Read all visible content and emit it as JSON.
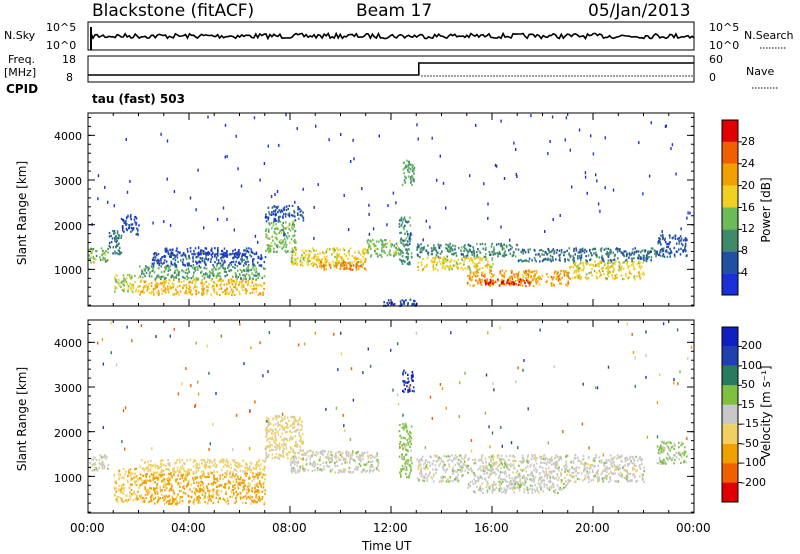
{
  "header": {
    "station": "Blackstone (fitACF)",
    "beam": "Beam 17",
    "date": "05/Jan/2013"
  },
  "top_panel": {
    "nsky_label": "N.Sky",
    "nsearch_label": "N.Search",
    "left_ticks": [
      "10^5",
      "10^0"
    ],
    "right_ticks": [
      "10^5",
      "10^0"
    ]
  },
  "freq_panel": {
    "freq_label": "Freq.",
    "freq_unit": "[MHz]",
    "cpid_label": "CPID",
    "nave_label": "Nave",
    "left_ticks": [
      "18",
      "8"
    ],
    "right_ticks": [
      "60",
      "0"
    ],
    "cpid_text": "tau (fast) 503"
  },
  "x_axis": {
    "label": "Time UT",
    "ticks": [
      "00:00",
      "04:00",
      "08:00",
      "12:00",
      "16:00",
      "20:00",
      "00:00"
    ]
  },
  "power_panel": {
    "ylabel": "Slant Range [km]",
    "yticks": [
      "1000",
      "2000",
      "3000",
      "4000"
    ],
    "colorbar_label": "Power [dB]",
    "colorbar_ticks": [
      "4",
      "8",
      "12",
      "16",
      "20",
      "24",
      "28"
    ],
    "colors": [
      "#1a2fd8",
      "#2050a0",
      "#3f8a6a",
      "#6bbb5a",
      "#f0d020",
      "#f0a000",
      "#f06000",
      "#e00000"
    ]
  },
  "velocity_panel": {
    "ylabel": "Slant Range [km]",
    "yticks": [
      "1000",
      "2000",
      "3000",
      "4000"
    ],
    "colorbar_label": "Velocity [m s⁻¹]",
    "colorbar_ticks": [
      "-200",
      "-100",
      "-50",
      "-15",
      "15",
      "50",
      "100",
      "200"
    ],
    "colors": [
      "#e00000",
      "#f06000",
      "#f0a000",
      "#f0d060",
      "#c8c8c8",
      "#80c040",
      "#2a7a60",
      "#2040b0",
      "#1020c0"
    ]
  },
  "chart_data": [
    {
      "type": "heatmap",
      "title": "Power",
      "xlabel": "Time UT",
      "ylabel": "Slant Range [km]",
      "xlim": [
        0,
        24
      ],
      "ylim": [
        180,
        4500
      ],
      "colorbar": {
        "label": "Power [dB]",
        "range": [
          0,
          32
        ]
      },
      "regions": [
        {
          "t0": 0.0,
          "t1": 0.8,
          "r0": 1150,
          "r1": 1500,
          "value": 14
        },
        {
          "t0": 0.8,
          "t1": 1.3,
          "r0": 1300,
          "r1": 1900,
          "value": 8
        },
        {
          "t0": 1.3,
          "t1": 2.0,
          "r0": 1800,
          "r1": 2200,
          "value": 4
        },
        {
          "t0": 1.0,
          "t1": 2.0,
          "r0": 500,
          "r1": 900,
          "value": 16
        },
        {
          "t0": 2.0,
          "t1": 7.0,
          "r0": 450,
          "r1": 800,
          "value": 20
        },
        {
          "t0": 2.0,
          "t1": 7.0,
          "r0": 800,
          "r1": 1100,
          "value": 12
        },
        {
          "t0": 2.5,
          "t1": 7.0,
          "r0": 1100,
          "r1": 1400,
          "value": 6
        },
        {
          "t0": 3.0,
          "t1": 6.5,
          "r0": 1300,
          "r1": 1500,
          "value": 4
        },
        {
          "t0": 7.0,
          "t1": 8.2,
          "r0": 1400,
          "r1": 2100,
          "value": 14
        },
        {
          "t0": 7.0,
          "t1": 8.5,
          "r0": 2100,
          "r1": 2450,
          "value": 6
        },
        {
          "t0": 8.0,
          "t1": 11.0,
          "r0": 1100,
          "r1": 1500,
          "value": 18
        },
        {
          "t0": 9.0,
          "t1": 11.0,
          "r0": 1000,
          "r1": 1200,
          "value": 24
        },
        {
          "t0": 11.0,
          "t1": 12.3,
          "r0": 1300,
          "r1": 1700,
          "value": 14
        },
        {
          "t0": 11.5,
          "t1": 13.0,
          "r0": 200,
          "r1": 350,
          "value": 4
        },
        {
          "t0": 12.4,
          "t1": 12.9,
          "r0": 2900,
          "r1": 3500,
          "value": 12
        },
        {
          "t0": 12.3,
          "t1": 12.8,
          "r0": 1100,
          "r1": 2200,
          "value": 10
        },
        {
          "t0": 13.0,
          "t1": 16.0,
          "r0": 1000,
          "r1": 1300,
          "value": 18
        },
        {
          "t0": 13.0,
          "t1": 17.0,
          "r0": 1300,
          "r1": 1600,
          "value": 10
        },
        {
          "t0": 15.0,
          "t1": 19.0,
          "r0": 650,
          "r1": 1000,
          "value": 22
        },
        {
          "t0": 15.5,
          "t1": 17.5,
          "r0": 650,
          "r1": 800,
          "value": 28
        },
        {
          "t0": 19.0,
          "t1": 22.0,
          "r0": 800,
          "r1": 1200,
          "value": 18
        },
        {
          "t0": 17.0,
          "t1": 22.5,
          "r0": 1200,
          "r1": 1500,
          "value": 8
        },
        {
          "t0": 22.5,
          "t1": 23.7,
          "r0": 1300,
          "r1": 1800,
          "value": 6
        }
      ]
    },
    {
      "type": "heatmap",
      "title": "Velocity",
      "xlabel": "Time UT",
      "ylabel": "Slant Range [km]",
      "xlim": [
        0,
        24
      ],
      "ylim": [
        180,
        4500
      ],
      "colorbar": {
        "label": "Velocity [m s⁻¹]",
        "range": [
          -250,
          250
        ]
      },
      "regions": [
        {
          "t0": 0.0,
          "t1": 0.8,
          "r0": 1150,
          "r1": 1500,
          "value": 0
        },
        {
          "t0": 1.0,
          "t1": 2.0,
          "r0": 450,
          "r1": 1200,
          "value": -40
        },
        {
          "t0": 2.0,
          "t1": 7.0,
          "r0": 400,
          "r1": 1100,
          "value": -60
        },
        {
          "t0": 2.0,
          "t1": 7.0,
          "r0": 1100,
          "r1": 1400,
          "value": -30
        },
        {
          "t0": 7.0,
          "t1": 8.5,
          "r0": 1400,
          "r1": 2400,
          "value": -25
        },
        {
          "t0": 8.0,
          "t1": 11.5,
          "r0": 1100,
          "r1": 1600,
          "value": 0
        },
        {
          "t0": 12.3,
          "t1": 12.8,
          "r0": 1000,
          "r1": 2200,
          "value": 30
        },
        {
          "t0": 12.4,
          "t1": 12.9,
          "r0": 2900,
          "r1": 3400,
          "value": 200
        },
        {
          "t0": 13.0,
          "t1": 22.0,
          "r0": 900,
          "r1": 1500,
          "value": 0
        },
        {
          "t0": 15.0,
          "t1": 19.0,
          "r0": 650,
          "r1": 900,
          "value": 0
        },
        {
          "t0": 22.5,
          "t1": 23.7,
          "r0": 1300,
          "r1": 1800,
          "value": 20
        }
      ]
    }
  ]
}
